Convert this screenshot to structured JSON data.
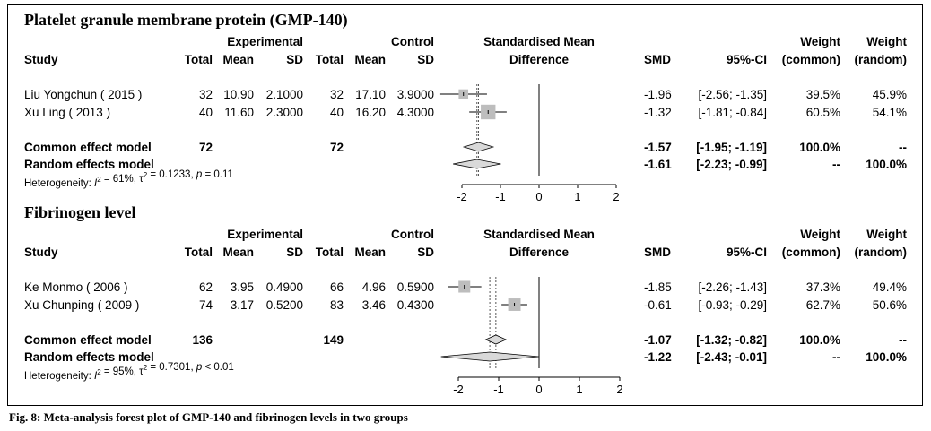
{
  "caption": "Fig. 8: Meta-analysis forest plot of GMP-140 and fibrinogen levels in two groups",
  "headers": {
    "experimental": "Experimental",
    "control": "Control",
    "std_mean": "Standardised Mean",
    "difference": "Difference",
    "study": "Study",
    "total": "Total",
    "mean": "Mean",
    "sd": "SD",
    "smd": "SMD",
    "ci": "95%-CI",
    "weight": "Weight",
    "common": "(common)",
    "random": "(random)"
  },
  "colors": {
    "box": "#bdbdbd",
    "diamond": "#d9d9d9"
  },
  "chart_data": [
    {
      "type": "forest",
      "title": "Platelet granule membrane protein (GMP-140)",
      "xlim": [
        -2,
        2
      ],
      "xticks": [
        "-2",
        "-1",
        "0",
        "1",
        "2"
      ],
      "studies": [
        {
          "study": "Liu Yongchun ( 2015 )",
          "exp_total": "32",
          "exp_mean": "10.90",
          "exp_sd": "2.1000",
          "ctl_total": "32",
          "ctl_mean": "17.10",
          "ctl_sd": "3.9000",
          "smd_text": "-1.96",
          "ci_text": "[-2.56; -1.35]",
          "w_common": "39.5%",
          "w_random": "45.9%",
          "smd": -1.96,
          "lower": -2.56,
          "upper": -1.35,
          "weight": 45.9
        },
        {
          "study": "Xu Ling ( 2013 )",
          "exp_total": "40",
          "exp_mean": "11.60",
          "exp_sd": "2.3000",
          "ctl_total": "40",
          "ctl_mean": "16.20",
          "ctl_sd": "4.3000",
          "smd_text": "-1.32",
          "ci_text": "[-1.81; -0.84]",
          "w_common": "60.5%",
          "w_random": "54.1%",
          "smd": -1.32,
          "lower": -1.81,
          "upper": -0.84,
          "weight": 54.1
        }
      ],
      "common": {
        "label": "Common effect model",
        "exp_total": "72",
        "ctl_total": "72",
        "smd_text": "-1.57",
        "ci_text": "[-1.95; -1.19]",
        "w_common": "100.0%",
        "w_random": "--",
        "smd": -1.57,
        "lower": -1.95,
        "upper": -1.19
      },
      "random": {
        "label": "Random effects model",
        "smd_text": "-1.61",
        "ci_text": "[-2.23; -0.99]",
        "w_common": "--",
        "w_random": "100.0%",
        "smd": -1.61,
        "lower": -2.23,
        "upper": -0.99
      },
      "heterogeneity": {
        "i2": "61%",
        "tau2": "0.1233",
        "p": "0.11",
        "p_op": "="
      }
    },
    {
      "type": "forest",
      "title": "Fibrinogen level",
      "xlim": [
        -2,
        2
      ],
      "xticks": [
        "-2",
        "-1",
        "0",
        "1",
        "2"
      ],
      "studies": [
        {
          "study": "Ke Monmo ( 2006 )",
          "exp_total": "62",
          "exp_mean": "3.95",
          "exp_sd": "0.4900",
          "ctl_total": "66",
          "ctl_mean": "4.96",
          "ctl_sd": "0.5900",
          "smd_text": "-1.85",
          "ci_text": "[-2.26; -1.43]",
          "w_common": "37.3%",
          "w_random": "49.4%",
          "smd": -1.85,
          "lower": -2.26,
          "upper": -1.43,
          "weight": 49.4
        },
        {
          "study": "Xu Chunping ( 2009 )",
          "exp_total": "74",
          "exp_mean": "3.17",
          "exp_sd": "0.5200",
          "ctl_total": "83",
          "ctl_mean": "3.46",
          "ctl_sd": "0.4300",
          "smd_text": "-0.61",
          "ci_text": "[-0.93; -0.29]",
          "w_common": "62.7%",
          "w_random": "50.6%",
          "smd": -0.61,
          "lower": -0.93,
          "upper": -0.29,
          "weight": 50.6
        }
      ],
      "common": {
        "label": "Common effect model",
        "exp_total": "136",
        "ctl_total": "149",
        "smd_text": "-1.07",
        "ci_text": "[-1.32; -0.82]",
        "w_common": "100.0%",
        "w_random": "--",
        "smd": -1.07,
        "lower": -1.32,
        "upper": -0.82
      },
      "random": {
        "label": "Random effects model",
        "smd_text": "-1.22",
        "ci_text": "[-2.43; -0.01]",
        "w_common": "--",
        "w_random": "100.0%",
        "smd": -1.22,
        "lower": -2.43,
        "upper": -0.01
      },
      "heterogeneity": {
        "i2": "95%",
        "tau2": "0.7301",
        "p": "0.01",
        "p_op": "<"
      }
    }
  ]
}
